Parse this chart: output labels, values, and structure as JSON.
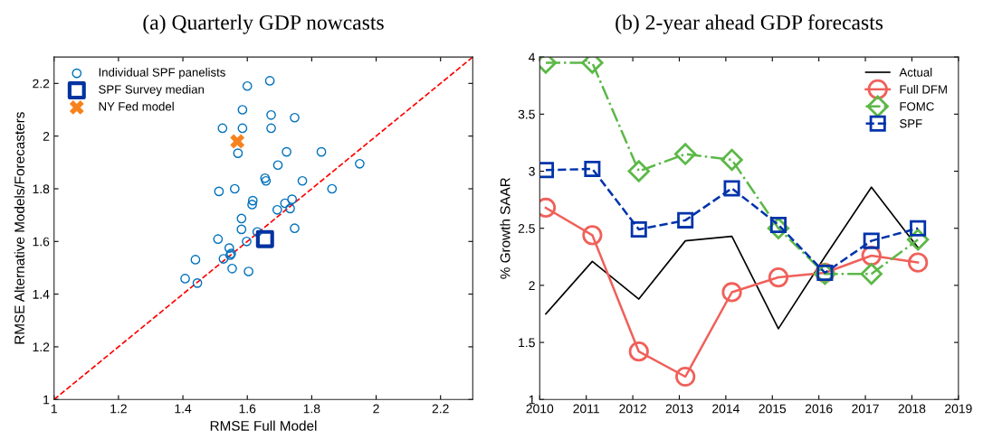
{
  "chart_data": [
    {
      "type": "scatter",
      "title": "(a) Quarterly GDP nowcasts",
      "xlabel": "RMSE Full Model",
      "ylabel": "RMSE Alternative Models/Forecasters",
      "xlim": [
        1,
        2.3
      ],
      "ylim": [
        1,
        2.3
      ],
      "xticks": [
        1,
        1.2,
        1.4,
        1.6,
        1.8,
        2,
        2.2
      ],
      "yticks": [
        1,
        1.2,
        1.4,
        1.6,
        1.8,
        2,
        2.2
      ],
      "grid": false,
      "legend": "top left",
      "series": [
        {
          "name": "Individual SPF panelists",
          "color": "#0072bd",
          "marker": "circle",
          "x": [
            1.67,
            1.6,
            1.585,
            1.523,
            1.585,
            1.674,
            1.674,
            1.747,
            1.571,
            1.695,
            1.722,
            1.83,
            1.949,
            1.655,
            1.658,
            1.771,
            1.512,
            1.561,
            1.863,
            1.617,
            1.615,
            1.717,
            1.739,
            1.733,
            1.693,
            1.582,
            1.582,
            1.747,
            1.631,
            1.509,
            1.598,
            1.544,
            1.55,
            1.547,
            1.526,
            1.439,
            1.553,
            1.604,
            1.407,
            1.445
          ],
          "values": [
            2.21,
            2.19,
            2.1,
            2.03,
            2.03,
            2.08,
            2.03,
            2.07,
            1.935,
            1.89,
            1.94,
            1.94,
            1.895,
            1.84,
            1.83,
            1.83,
            1.79,
            1.8,
            1.8,
            1.755,
            1.74,
            1.745,
            1.76,
            1.725,
            1.72,
            1.687,
            1.646,
            1.65,
            1.636,
            1.609,
            1.6,
            1.575,
            1.554,
            1.548,
            1.534,
            1.531,
            1.497,
            1.486,
            1.459,
            1.442
          ]
        },
        {
          "name": "SPF Survey median",
          "color": "#0033a0",
          "marker": "square",
          "x": [
            1.655
          ],
          "values": [
            1.609
          ]
        },
        {
          "name": "NY Fed model",
          "color": "#f7831e",
          "marker": "cross",
          "x": [
            1.569
          ],
          "values": [
            1.98
          ]
        },
        {
          "type": "line",
          "color": "#ff0000",
          "line_style": "dashed",
          "marker": "none",
          "x": [
            1,
            2.3
          ],
          "values": [
            1,
            2.3
          ]
        }
      ]
    },
    {
      "type": "line",
      "title": "(b) 2-year ahead GDP forecasts",
      "ylabel": "% Growth SAAR",
      "xlim": [
        2010,
        2019
      ],
      "ylim": [
        1,
        4
      ],
      "xticks": [
        2010,
        2011,
        2012,
        2013,
        2014,
        2015,
        2016,
        2017,
        2018,
        2019
      ],
      "yticks": [
        1,
        1.5,
        2,
        2.5,
        3,
        3.5,
        4
      ],
      "grid": false,
      "legend": "top right",
      "x": [
        2010.13,
        2011.13,
        2012.13,
        2013.13,
        2014.13,
        2015.13,
        2016.13,
        2017.13,
        2018.13
      ],
      "series": [
        {
          "name": "Actual",
          "color": "#000000",
          "marker": "none",
          "line_style": "solid",
          "values": [
            1.75,
            2.21,
            1.88,
            2.39,
            2.43,
            1.62,
            2.25,
            2.86,
            2.33
          ]
        },
        {
          "name": "Full DFM",
          "color": "#f0605a",
          "marker": "circle",
          "line_style": "solid",
          "values": [
            2.68,
            2.44,
            1.42,
            1.2,
            1.94,
            2.07,
            2.11,
            2.26,
            2.2
          ]
        },
        {
          "name": "FOMC",
          "color": "#5cb848",
          "marker": "diamond",
          "line_style": "dashdot",
          "values": [
            3.95,
            3.95,
            3.0,
            3.15,
            3.1,
            2.5,
            2.1,
            2.1,
            2.4
          ]
        },
        {
          "name": "SPF",
          "color": "#0033aa",
          "marker": "square",
          "line_style": "dashed",
          "values": [
            3.01,
            3.02,
            2.49,
            2.57,
            2.85,
            2.53,
            2.11,
            2.39,
            2.5
          ]
        }
      ]
    }
  ]
}
